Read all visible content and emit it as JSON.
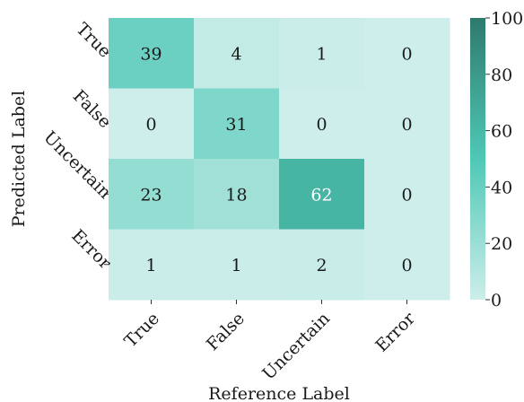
{
  "chart_data": {
    "type": "heatmap",
    "xlabel": "Reference Label",
    "ylabel": "Predicted Label",
    "x_categories": [
      "True",
      "False",
      "Uncertain",
      "Error"
    ],
    "y_categories": [
      "True",
      "False",
      "Uncertain",
      "Error"
    ],
    "values": [
      [
        39,
        4,
        1,
        0
      ],
      [
        0,
        31,
        0,
        0
      ],
      [
        23,
        18,
        62,
        0
      ],
      [
        1,
        1,
        2,
        0
      ]
    ],
    "colorbar": {
      "range": [
        0,
        100
      ],
      "ticks": [
        0,
        20,
        40,
        60,
        80,
        100
      ],
      "color_low": "#cdeeea",
      "color_mid": "#4fc8b6",
      "color_high": "#2e7a6d"
    }
  }
}
